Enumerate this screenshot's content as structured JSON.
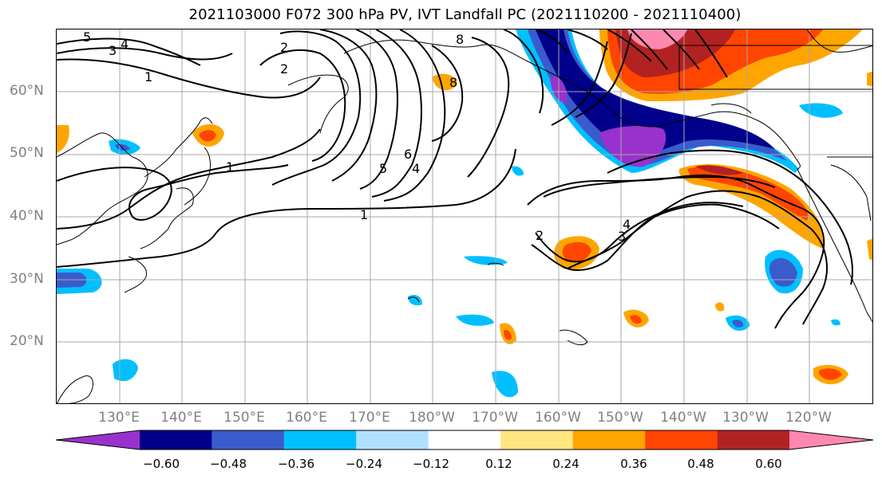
{
  "title": "2021103000 F072 300 hPa PV, IVT Landfall PC (2021110200 - 2021110400)",
  "lat_labels": [
    "60°N",
    "50°N",
    "40°N",
    "30°N",
    "20°N"
  ],
  "lon_labels": [
    "130°E",
    "140°E",
    "150°E",
    "160°E",
    "170°E",
    "180°W",
    "170°W",
    "160°W",
    "150°W",
    "140°W",
    "130°W",
    "120°W"
  ],
  "contour_labels": [
    "5",
    "3",
    "4",
    "1",
    "2",
    "8",
    "8",
    "6",
    "5",
    "4",
    "2",
    "1",
    "1",
    "2",
    "3",
    "4"
  ],
  "colorbar": {
    "colors": [
      "#9932cc",
      "#00008b",
      "#3a5bcc",
      "#00bfff",
      "#b0e0ff",
      "#ffffff",
      "#ffe680",
      "#ffa500",
      "#ff4500",
      "#b22222",
      "#ff88b0"
    ],
    "ticks": [
      "−0.60",
      "−0.48",
      "−0.36",
      "−0.24",
      "−0.12",
      "0.12",
      "0.24",
      "0.36",
      "0.48",
      "0.60"
    ]
  }
}
